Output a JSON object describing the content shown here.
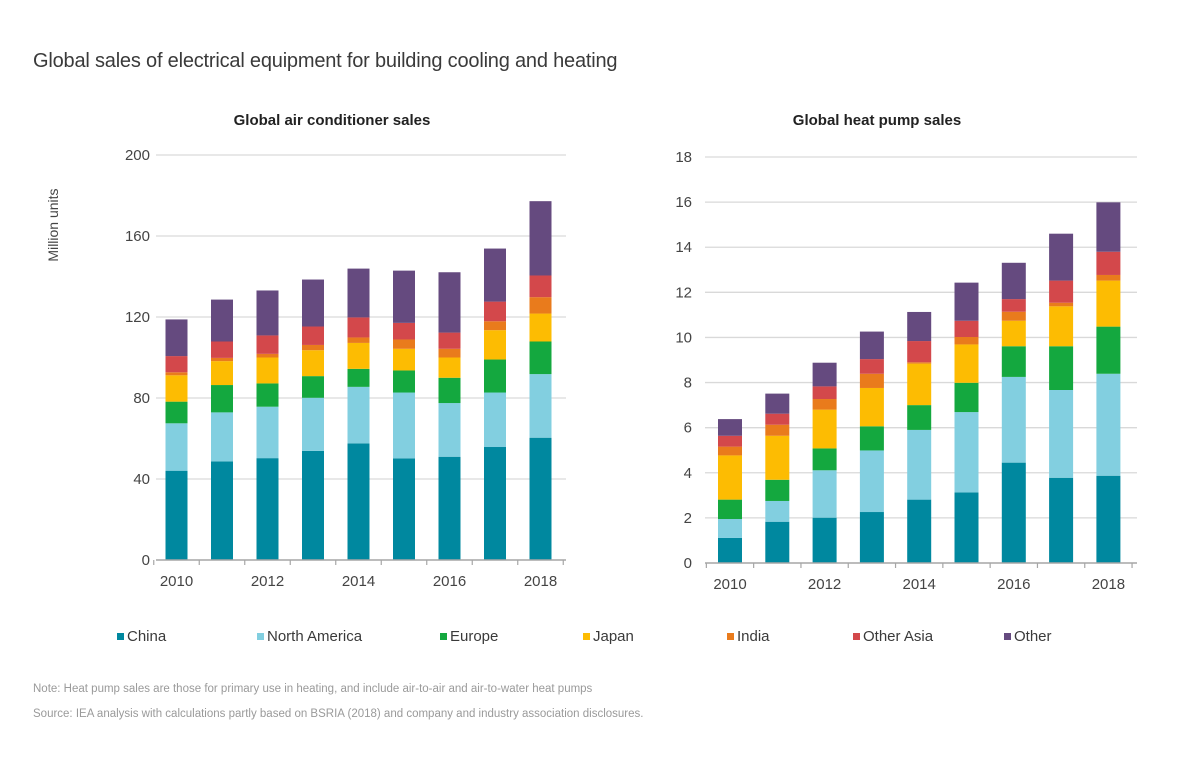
{
  "title": "Global sales of electrical equipment for building cooling and heating",
  "legend": [
    {
      "name": "China",
      "color": "#00889f"
    },
    {
      "name": "North America",
      "color": "#82cfe0"
    },
    {
      "name": "Europe",
      "color": "#14a83f"
    },
    {
      "name": "Japan",
      "color": "#fdbc02"
    },
    {
      "name": "India",
      "color": "#e97b1c"
    },
    {
      "name": "Other Asia",
      "color": "#d3484b"
    },
    {
      "name": "Other",
      "color": "#654a7f"
    }
  ],
  "note": "Note: Heat pump sales are those for primary use in heating, and include air-to-air and air-to-water heat pumps",
  "source": "Source: IEA analysis with calculations partly based on BSRIA (2018) and company and industry association disclosures.",
  "chart_data": [
    {
      "type": "bar",
      "stacked": true,
      "title": "Global air conditioner sales",
      "xlabel": "",
      "ylabel": "Million units",
      "ylim": [
        0,
        200
      ],
      "yticks": [
        0,
        40,
        80,
        120,
        160,
        200
      ],
      "grid": true,
      "categories": [
        "2010",
        "2011",
        "2012",
        "2013",
        "2014",
        "2015",
        "2016",
        "2017",
        "2018"
      ],
      "xtick_labels": [
        "2010",
        "",
        "2012",
        "",
        "2014",
        "",
        "2016",
        "",
        "2018"
      ],
      "series": [
        {
          "name": "China",
          "values": [
            44.1,
            48.7,
            50.3,
            53.9,
            57.6,
            50.2,
            51.0,
            55.8,
            60.4
          ]
        },
        {
          "name": "North America",
          "values": [
            23.4,
            24.2,
            25.4,
            26.2,
            27.9,
            32.5,
            26.5,
            26.9,
            31.4
          ]
        },
        {
          "name": "Europe",
          "values": [
            10.7,
            13.5,
            11.5,
            10.7,
            8.9,
            10.9,
            12.5,
            16.3,
            16.1
          ]
        },
        {
          "name": "Japan",
          "values": [
            13.0,
            11.8,
            12.8,
            12.8,
            12.8,
            10.7,
            10.0,
            14.5,
            13.8
          ]
        },
        {
          "name": "India",
          "values": [
            1.5,
            1.6,
            1.8,
            2.6,
            2.7,
            4.6,
            4.3,
            4.4,
            8.1
          ]
        },
        {
          "name": "Other Asia",
          "values": [
            8.0,
            8.1,
            9.1,
            9.1,
            9.9,
            8.2,
            8.0,
            9.7,
            10.7
          ]
        },
        {
          "name": "Other",
          "values": [
            18.1,
            20.7,
            22.2,
            23.2,
            24.1,
            25.8,
            29.8,
            26.2,
            36.7
          ]
        }
      ]
    },
    {
      "type": "bar",
      "stacked": true,
      "title": "Global heat pump sales",
      "xlabel": "",
      "ylabel": "",
      "ylim": [
        0,
        18
      ],
      "yticks": [
        0,
        2,
        4,
        6,
        8,
        10,
        12,
        14,
        16,
        18
      ],
      "grid": true,
      "categories": [
        "2010",
        "2011",
        "2012",
        "2013",
        "2014",
        "2015",
        "2016",
        "2017",
        "2018"
      ],
      "xtick_labels": [
        "2010",
        "",
        "2012",
        "",
        "2014",
        "",
        "2016",
        "",
        "2018"
      ],
      "series": [
        {
          "name": "China",
          "values": [
            1.11,
            1.83,
            2.01,
            2.26,
            2.81,
            3.13,
            4.45,
            3.78,
            3.87
          ]
        },
        {
          "name": "North America",
          "values": [
            0.84,
            0.92,
            2.1,
            2.73,
            3.09,
            3.56,
            3.8,
            3.89,
            4.52
          ]
        },
        {
          "name": "Europe",
          "values": [
            0.86,
            0.94,
            0.97,
            1.07,
            1.1,
            1.3,
            1.36,
            1.94,
            2.09
          ]
        },
        {
          "name": "Japan",
          "values": [
            1.96,
            1.95,
            1.72,
            1.7,
            1.84,
            1.7,
            1.13,
            1.77,
            2.04
          ]
        },
        {
          "name": "India",
          "values": [
            0.39,
            0.49,
            0.47,
            0.63,
            0.06,
            0.33,
            0.4,
            0.16,
            0.25
          ]
        },
        {
          "name": "Other Asia",
          "values": [
            0.48,
            0.49,
            0.56,
            0.65,
            0.94,
            0.72,
            0.56,
            0.98,
            1.03
          ]
        },
        {
          "name": "Other",
          "values": [
            0.74,
            0.89,
            1.05,
            1.22,
            1.29,
            1.69,
            1.61,
            2.08,
            2.19
          ]
        }
      ]
    }
  ]
}
